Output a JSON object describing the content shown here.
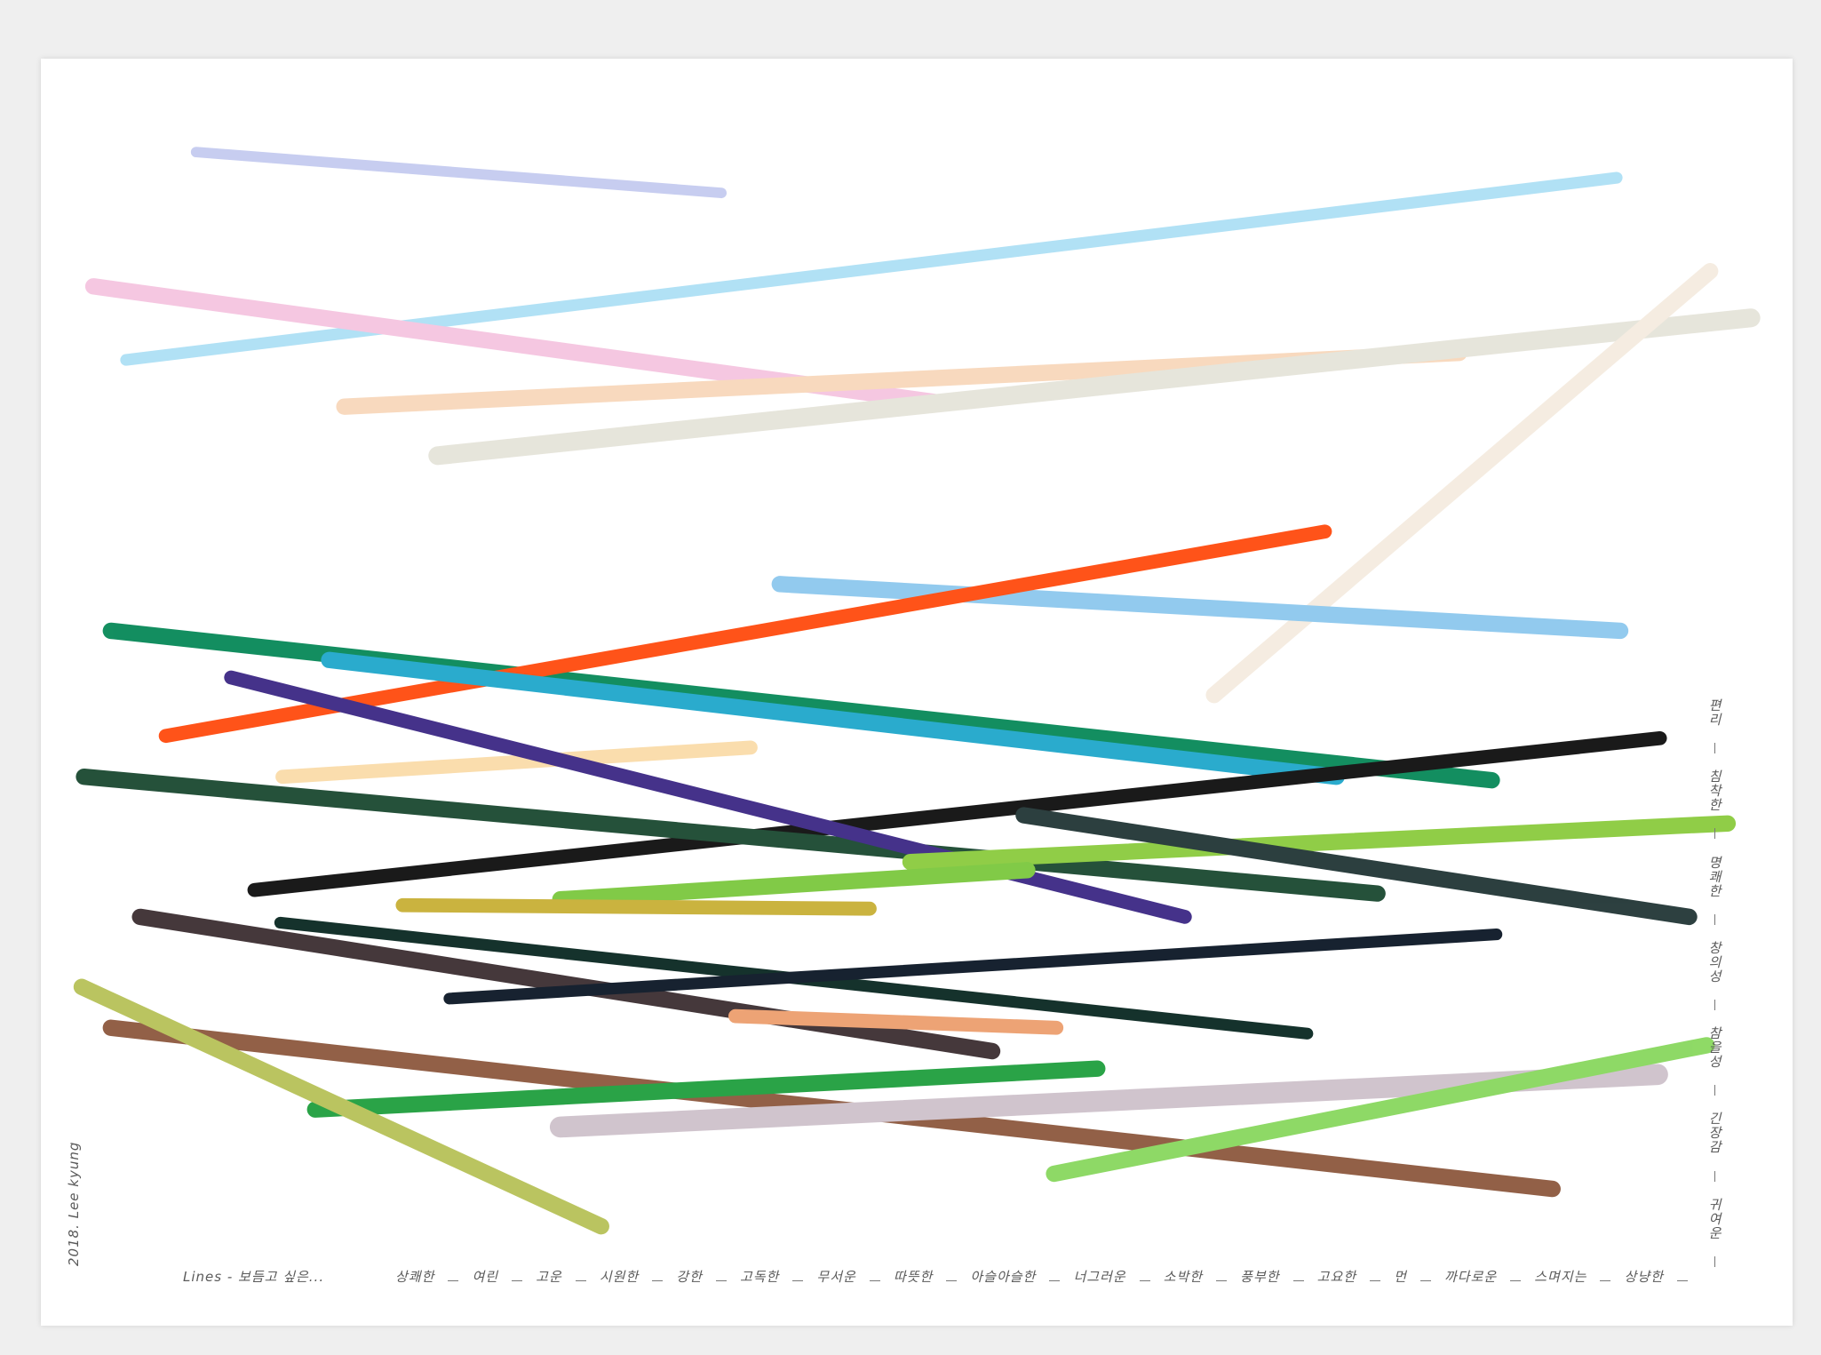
{
  "caption": "Lines - 보듬고 싶은...",
  "words": [
    "상쾌한",
    "여린",
    "고운",
    "시원한",
    "강한",
    "고독한",
    "무서운",
    "따뜻한",
    "아슬아슬한",
    "너그러운",
    "소박한",
    "풍부한",
    "고요한",
    "먼",
    "까다로운",
    "스며지는",
    "상냥한"
  ],
  "side_words": [
    "편리",
    "침착한",
    "명쾌한",
    "창의성",
    "참을성",
    "긴장감",
    "귀여운"
  ],
  "signature": "2018. Lee kyung"
}
